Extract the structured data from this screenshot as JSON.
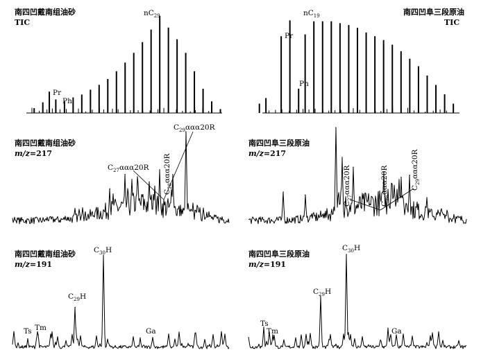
{
  "chart_data": [
    {
      "type": "line",
      "sample": "南四凹戴南组油砂",
      "mode": "TIC",
      "peak_labels": [
        "nC",
        "Pr",
        "Ph"
      ],
      "peak_label_subscripts": [
        "29",
        "",
        ""
      ],
      "x": [
        0.1,
        0.14,
        0.17,
        0.2,
        0.24,
        0.28,
        0.32,
        0.36,
        0.4,
        0.44,
        0.48,
        0.52,
        0.56,
        0.6,
        0.64,
        0.68,
        0.72,
        0.76,
        0.8,
        0.84,
        0.88,
        0.92,
        0.96
      ],
      "values": [
        0.05,
        0.11,
        0.22,
        0.14,
        0.12,
        0.16,
        0.19,
        0.24,
        0.29,
        0.35,
        0.43,
        0.52,
        0.62,
        0.73,
        0.86,
        1.0,
        0.88,
        0.76,
        0.62,
        0.43,
        0.25,
        0.12,
        0.04
      ]
    },
    {
      "type": "line",
      "sample": "南四凹阜三段原油",
      "mode": "TIC",
      "peak_labels": [
        "nC",
        "Pr",
        "Ph"
      ],
      "peak_label_subscripts": [
        "19",
        "",
        ""
      ],
      "x": [
        0.05,
        0.08,
        0.15,
        0.19,
        0.23,
        0.26,
        0.3,
        0.34,
        0.38,
        0.42,
        0.46,
        0.5,
        0.54,
        0.58,
        0.62,
        0.66,
        0.7,
        0.74,
        0.78,
        0.82,
        0.86,
        0.9,
        0.94
      ],
      "values": [
        0.1,
        0.16,
        0.82,
        0.99,
        0.26,
        0.84,
        0.98,
        0.98,
        0.98,
        0.96,
        0.94,
        0.91,
        0.86,
        0.82,
        0.78,
        0.73,
        0.66,
        0.58,
        0.5,
        0.4,
        0.3,
        0.2,
        0.1
      ]
    },
    {
      "type": "line",
      "sample": "南四凹戴南组油砂",
      "mode_prefix": "m/z",
      "mode_value": "=217",
      "peak_labels": [
        "C",
        "C",
        "C"
      ],
      "peak_label_subscripts": [
        "27",
        "28",
        "29"
      ],
      "peak_label_suffix": "ααα20R",
      "x": [
        0.45,
        0.52,
        0.58,
        0.64,
        0.68,
        0.74,
        0.8
      ],
      "values": [
        0.4,
        0.55,
        0.45,
        0.32,
        0.6,
        0.55,
        1.0
      ]
    },
    {
      "type": "line",
      "sample": "南四凹阜三段原油",
      "mode_prefix": "m/z",
      "mode_value": "=217",
      "peak_labels": [
        "C",
        "C",
        "C"
      ],
      "peak_label_subscripts": [
        "27",
        "28",
        "29"
      ],
      "peak_label_suffix": "ααα20R",
      "x": [
        0.16,
        0.26,
        0.4,
        0.43,
        0.48,
        0.62,
        0.7,
        0.74
      ],
      "values": [
        0.35,
        0.32,
        1.0,
        0.7,
        0.6,
        0.55,
        0.5,
        0.52
      ]
    },
    {
      "type": "line",
      "sample": "南四凹戴南组油砂",
      "mode_prefix": "m/z",
      "mode_value": "=191",
      "peak_labels": [
        "Ts",
        "Tm",
        "C",
        "C",
        "Ga"
      ],
      "peak_label_subscripts": [
        "",
        "",
        "29",
        "30",
        ""
      ],
      "peak_label_suffix": "H",
      "x": [
        0.07,
        0.12,
        0.29,
        0.42,
        0.59
      ],
      "values": [
        0.12,
        0.16,
        0.45,
        1.0,
        0.13
      ]
    },
    {
      "type": "line",
      "sample": "南四凹阜三段原油",
      "mode_prefix": "m/z",
      "mode_value": "=191",
      "peak_labels": [
        "Ts",
        "Tm",
        "C",
        "C",
        "Ga"
      ],
      "peak_label_subscripts": [
        "",
        "",
        "29",
        "30",
        ""
      ],
      "peak_label_suffix": "H",
      "x": [
        0.07,
        0.11,
        0.33,
        0.45,
        0.64
      ],
      "values": [
        0.24,
        0.16,
        0.56,
        1.0,
        0.23
      ]
    }
  ]
}
